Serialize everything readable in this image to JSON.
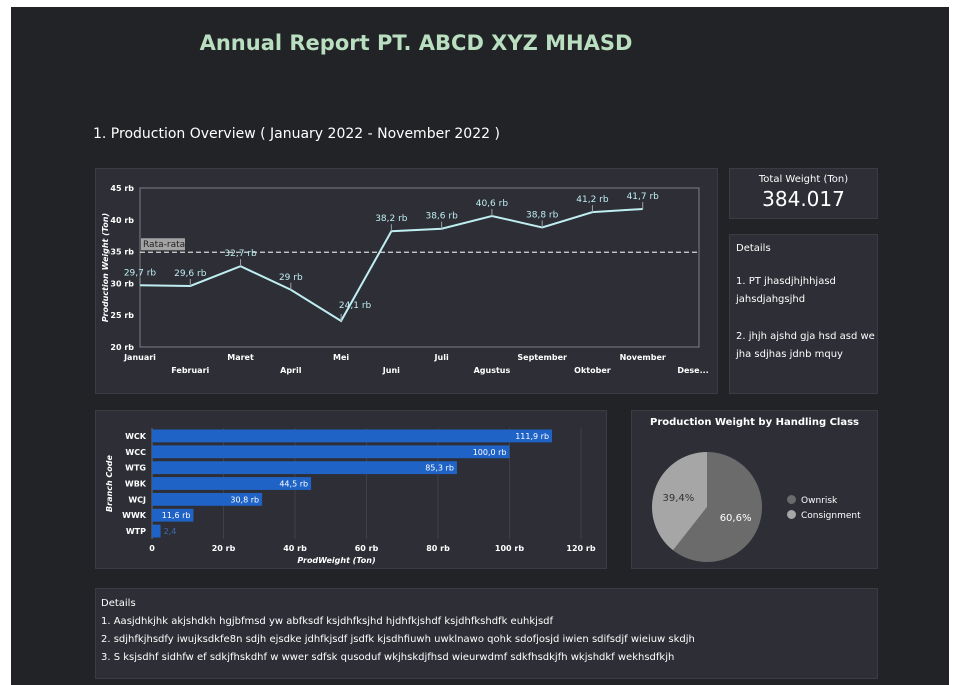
{
  "report": {
    "title": "Annual Report PT. ABCD XYZ MHASD",
    "section_title": "1. Production Overview  ( January 2022 - November 2022 )"
  },
  "total_weight": {
    "label": "Total Weight (Ton)",
    "value": "384.017"
  },
  "side_details": {
    "heading": "Details",
    "item1": "1. PT  jhasdjhjhhjasd jahsdjahgsjhd",
    "item2": "2. jhjh ajshd gja hsd asd we jha sdjhas jdnb mquy"
  },
  "bottom_details": {
    "heading": "Details",
    "line1": "1. Aasjdhkjhk akjshdkh hgjbfmsd yw abfksdf ksjdhfksjhd hjdhfkjshdf ksjdhfkshdfk euhkjsdf",
    "line2": "2. sdjhfkjhsdfy iwujksdkfe8n sdjh ejsdke jdhfkjsdf jsdfk kjsdhfiuwh uwklnawo qohk sdofjosjd iwien sdifsdjf wieiuw skdjh",
    "line3": "3. S ksjsdhf sidhfw ef sdkjfhskdhf w wwer sdfsk qusoduf wkjhskdjfhsd wieurwdmf sdkfhsdkjfh wkjshdkf wekhsdfkjh"
  },
  "colors": {
    "line": "#bfeef2",
    "bar": "#1f63c6",
    "pie_ownrisk": "#6b6b6b",
    "pie_consignment": "#a6a6a6",
    "title": "#b9dfc0"
  },
  "chart_data": [
    {
      "type": "line",
      "title": "",
      "ylabel": "Production Weight (Ton)",
      "categories": [
        "Januari",
        "Februari",
        "Maret",
        "April",
        "Mei",
        "Juni",
        "Juli",
        "Agustus",
        "September",
        "Oktober",
        "November",
        "Dese..."
      ],
      "values": [
        29.7,
        29.6,
        32.7,
        29,
        24.1,
        38.2,
        38.6,
        40.6,
        38.8,
        41.2,
        41.7,
        null
      ],
      "data_labels": [
        "29,7 rb",
        "29,6 rb",
        "32,7 rb",
        "29 rb",
        "24,1 rb",
        "38,2 rb",
        "38,6 rb",
        "40,6 rb",
        "38,8 rb",
        "41,2 rb",
        "41,7 rb",
        ""
      ],
      "yticks": [
        "20 rb",
        "25 rb",
        "30 rb",
        "35 rb",
        "40 rb",
        "45 rb"
      ],
      "ylim": [
        20,
        45
      ],
      "reference_line": {
        "label": "Rata-rata",
        "value": 34.9
      },
      "grid": false
    },
    {
      "type": "bar",
      "orientation": "horizontal",
      "title": "",
      "xlabel": "ProdWeight (Ton)",
      "ylabel": "Branch Code",
      "categories": [
        "WCK",
        "WCC",
        "WTG",
        "WBK",
        "WCJ",
        "WWK",
        "WTP"
      ],
      "values": [
        111.9,
        100.0,
        85.3,
        44.5,
        30.8,
        11.6,
        2.4
      ],
      "data_labels": [
        "111,9 rb",
        "100,0 rb",
        "85,3 rb",
        "44,5 rb",
        "30,8 rb",
        "11,6 rb",
        "2,4"
      ],
      "xticks": [
        "0",
        "20 rb",
        "40 rb",
        "60 rb",
        "80 rb",
        "100 rb",
        "120 rb"
      ],
      "xlim": [
        0,
        120
      ],
      "grid": true
    },
    {
      "type": "pie",
      "title": "Production Weight by Handling Class",
      "labels": [
        "Ownrisk",
        "Consignment"
      ],
      "values": [
        60.6,
        39.4
      ],
      "data_labels": [
        "60,6%",
        "39,4%"
      ],
      "legend": "right"
    }
  ]
}
